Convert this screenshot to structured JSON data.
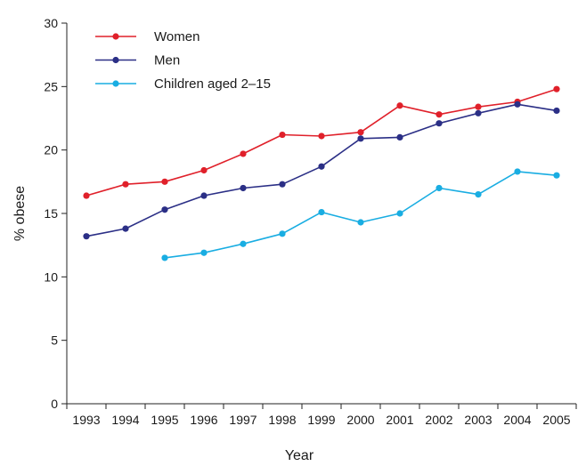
{
  "chart_data": {
    "type": "line",
    "title": "",
    "xlabel": "Year",
    "ylabel": "% obese",
    "x": [
      1993,
      1994,
      1995,
      1996,
      1997,
      1998,
      1999,
      2000,
      2001,
      2002,
      2003,
      2004,
      2005
    ],
    "ylim": [
      0,
      30
    ],
    "yticks": [
      0,
      5,
      10,
      15,
      20,
      25,
      30
    ],
    "grid": false,
    "legend_position": "top-left",
    "series": [
      {
        "name": "Women",
        "color": "#e0202a",
        "values": [
          16.4,
          17.3,
          17.5,
          18.4,
          19.7,
          21.2,
          21.1,
          21.4,
          23.5,
          22.8,
          23.4,
          23.8,
          24.8
        ]
      },
      {
        "name": "Men",
        "color": "#2b2f86",
        "values": [
          13.2,
          13.8,
          15.3,
          16.4,
          17.0,
          17.3,
          18.7,
          20.9,
          21.0,
          22.1,
          22.9,
          23.6,
          23.1
        ]
      },
      {
        "name": "Children aged 2–15",
        "color": "#19ade2",
        "values": [
          null,
          null,
          11.5,
          11.9,
          12.6,
          13.4,
          15.1,
          14.3,
          15.0,
          17.0,
          16.5,
          18.3,
          18.0
        ]
      }
    ]
  }
}
